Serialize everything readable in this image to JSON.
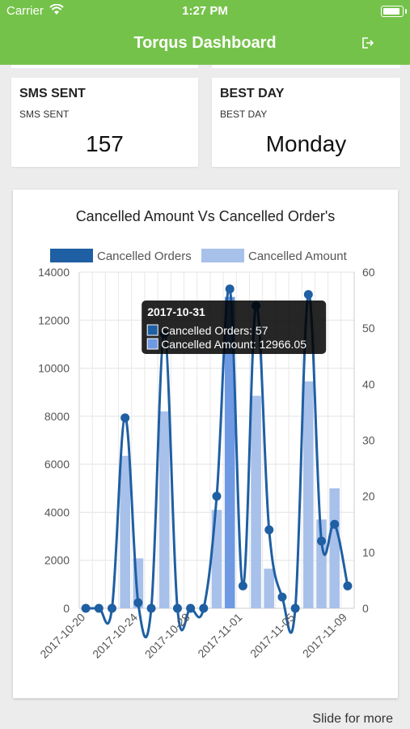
{
  "status_bar": {
    "carrier": "Carrier",
    "time": "1:27 PM"
  },
  "header": {
    "title": "Torqus Dashboard",
    "logout_icon": "logout-icon"
  },
  "stats": [
    {
      "title": "SMS SENT",
      "subtitle": "SMS SENT",
      "value": "157"
    },
    {
      "title": "BEST DAY",
      "subtitle": "BEST DAY",
      "value": "Monday"
    }
  ],
  "colors": {
    "header": "#75c24a",
    "orders": "#1f5fa3",
    "amount": "#a8c1ea",
    "amount_active": "#6f99e3"
  },
  "chart_data": {
    "type": "bar",
    "title": "Cancelled Amount Vs Cancelled Order's",
    "x": [
      "2017-10-20",
      "2017-10-21",
      "2017-10-22",
      "2017-10-23",
      "2017-10-24",
      "2017-10-25",
      "2017-10-26",
      "2017-10-27",
      "2017-10-28",
      "2017-10-29",
      "2017-10-30",
      "2017-10-31",
      "2017-11-01",
      "2017-11-02",
      "2017-11-03",
      "2017-11-04",
      "2017-11-05",
      "2017-11-06",
      "2017-11-07",
      "2017-11-08",
      "2017-11-09"
    ],
    "x_tick_labels": [
      "2017-10-20",
      "2017-10-24",
      "2017-10-28",
      "2017-11-01",
      "2017-11-05",
      "2017-11-09"
    ],
    "series": [
      {
        "name": "Cancelled Orders",
        "type": "line",
        "axis": "right",
        "values": [
          0,
          0,
          0,
          34,
          1,
          0,
          49,
          0,
          0,
          0,
          20,
          57,
          4,
          54,
          14,
          2,
          0,
          56,
          12,
          15,
          4
        ]
      },
      {
        "name": "Cancelled Amount",
        "type": "bar",
        "axis": "left",
        "values": [
          0,
          0,
          0,
          6350,
          2080,
          0,
          8200,
          0,
          0,
          0,
          4100,
          12966.05,
          0,
          8850,
          1650,
          0,
          0,
          9450,
          3700,
          5000,
          0
        ]
      }
    ],
    "y_left_ticks": [
      0,
      2000,
      4000,
      6000,
      8000,
      10000,
      12000,
      14000
    ],
    "y_right_ticks": [
      0,
      10,
      20,
      30,
      40,
      50,
      60
    ],
    "ylim_left": [
      0,
      14000
    ],
    "ylim_right": [
      0,
      60
    ],
    "legend": "top",
    "tooltip": {
      "title": "2017-10-31",
      "lines": [
        "Cancelled Orders: 57",
        "Cancelled Amount: 12966.05"
      ]
    },
    "active_point": "2017-10-31"
  },
  "footer": {
    "hint": "Slide for more"
  }
}
